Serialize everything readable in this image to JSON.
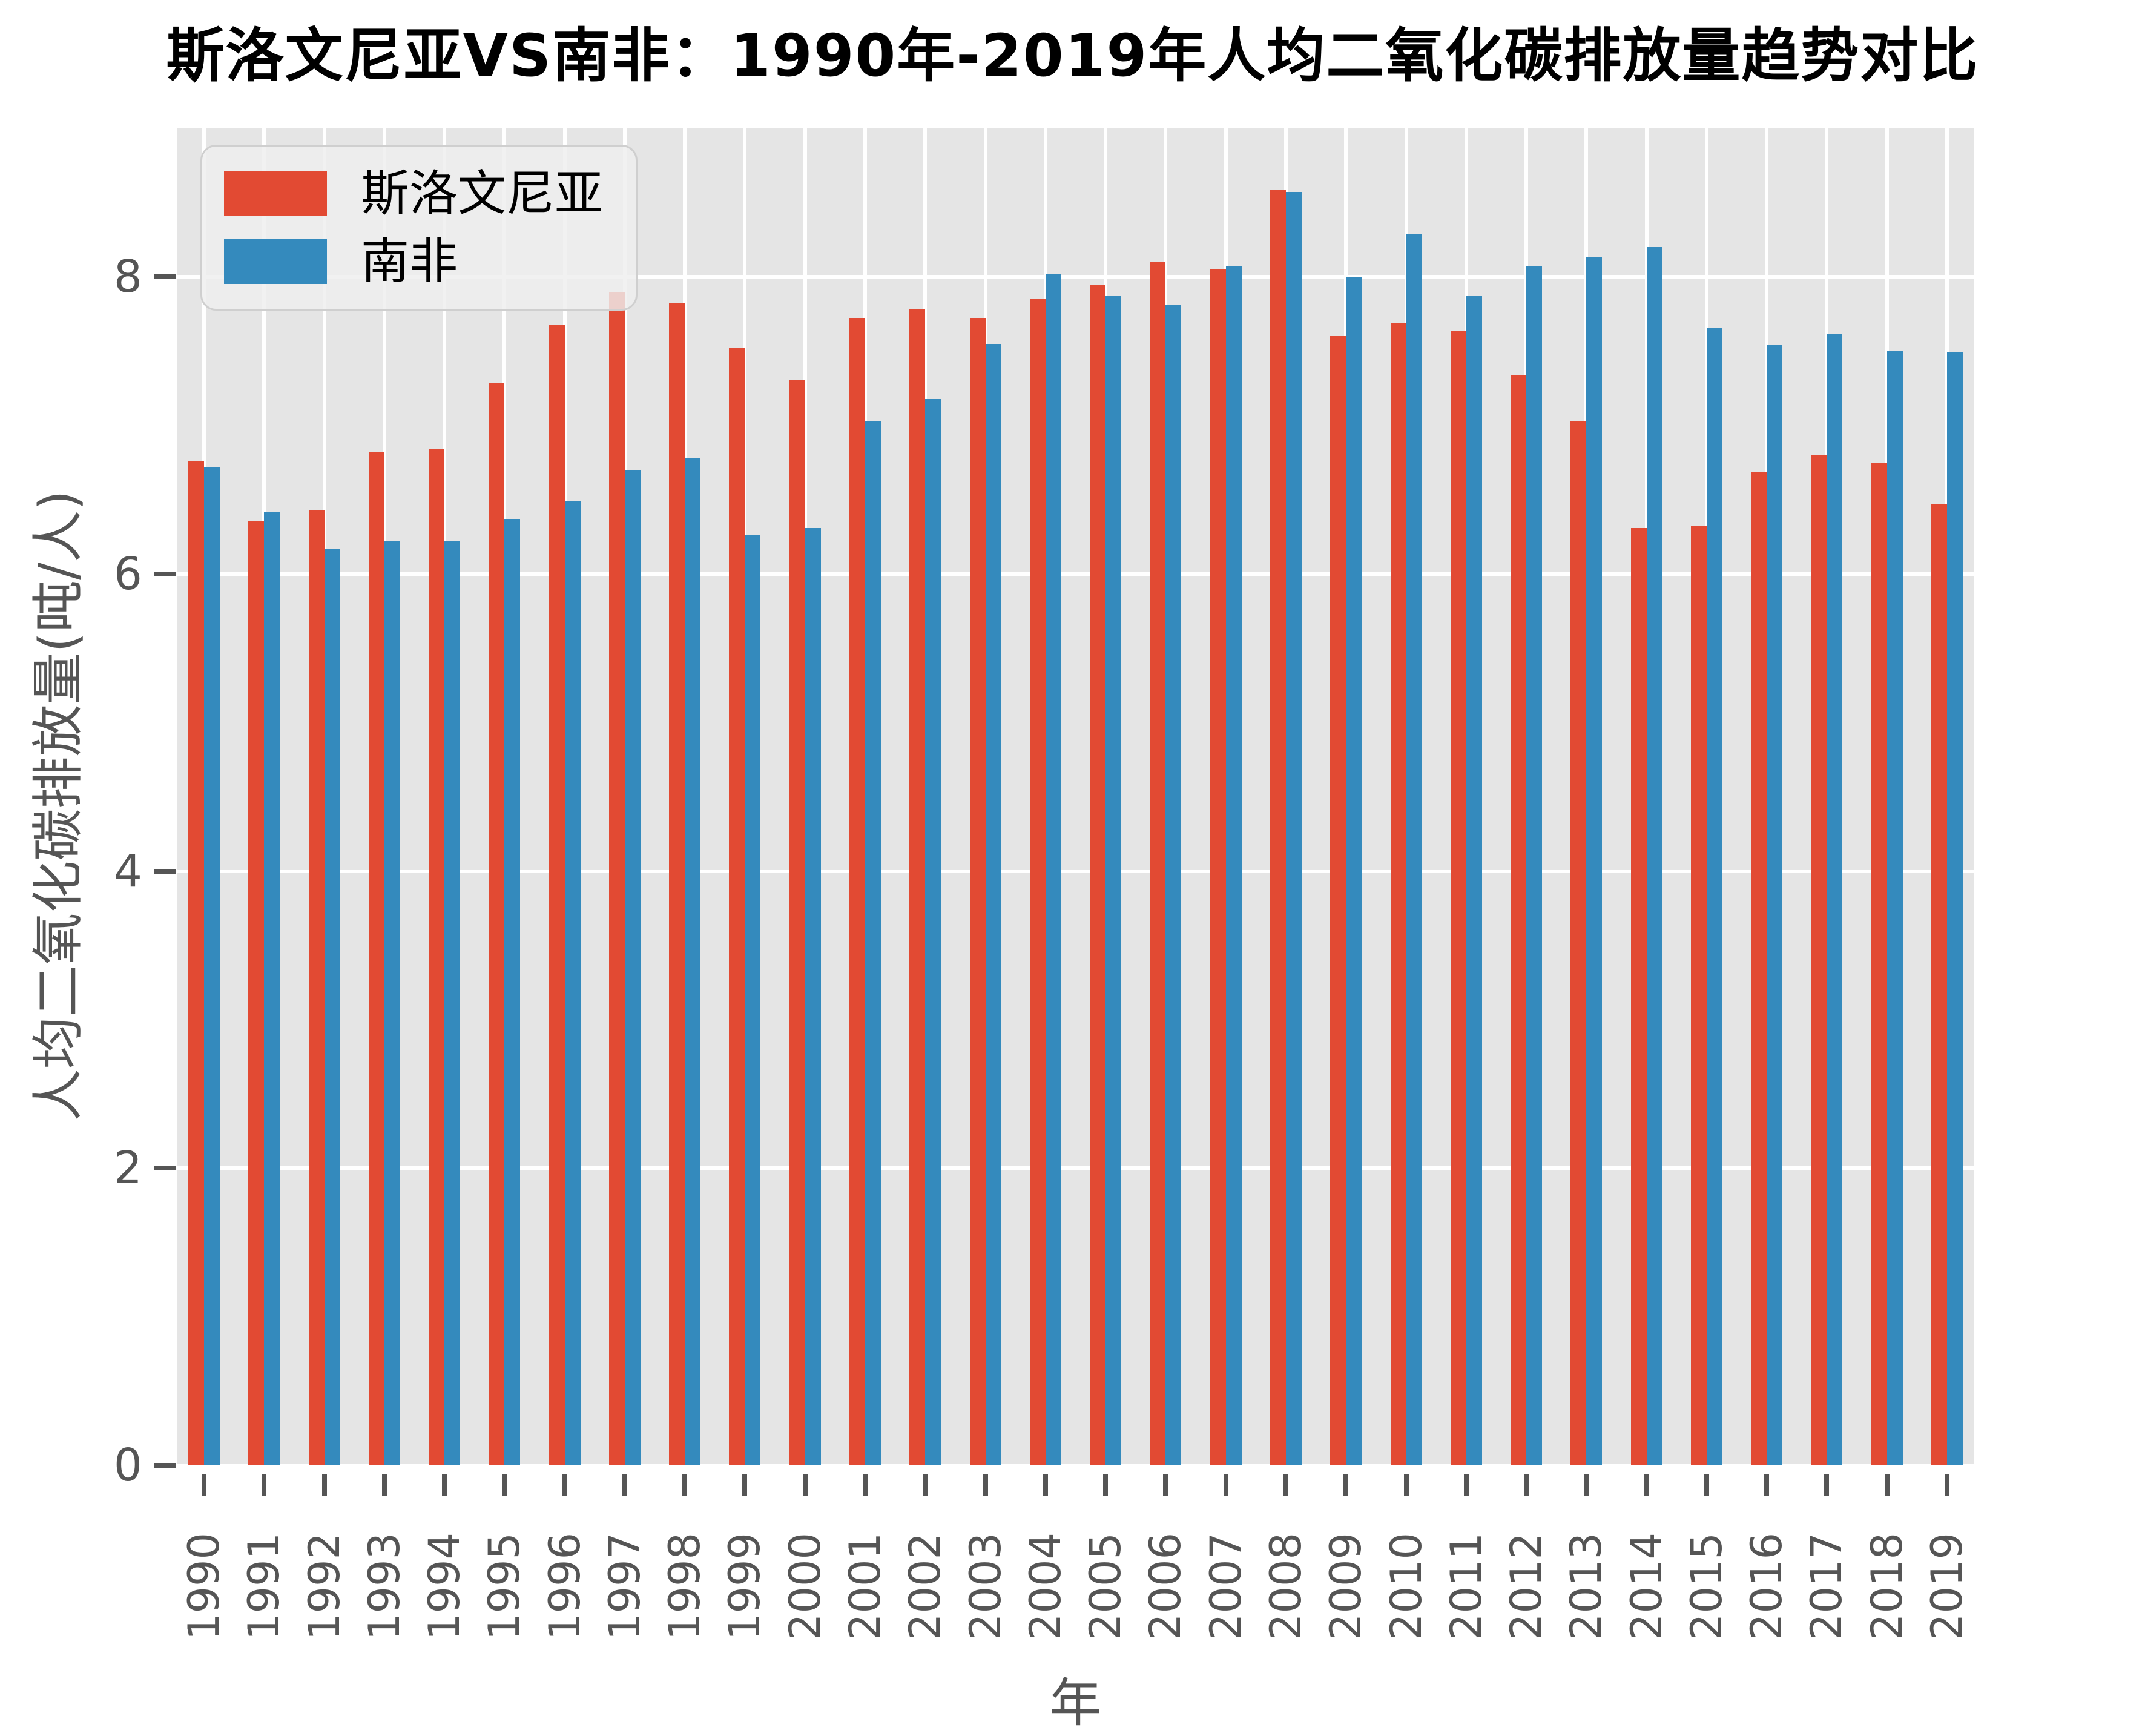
{
  "title": "斯洛文尼亚VS南非：1990年-2019年人均二氧化碳排放量趋势对比",
  "legend": {
    "items": [
      {
        "label": "斯洛文尼亚",
        "color": "#E24A33"
      },
      {
        "label": "南非",
        "color": "#348ABD"
      }
    ]
  },
  "axes": {
    "xlabel": "年",
    "ylabel": "人均二氧化碳排放量(吨/人)"
  },
  "colors": {
    "slovenia_red": "#E24A33",
    "south_africa_blue": "#348ABD",
    "plot_background": "#E5E5E5",
    "gridline": "#FFFFFF",
    "tick_text": "#555555",
    "title_text": "#000000"
  },
  "chart_data": {
    "type": "bar",
    "title": "斯洛文尼亚VS南非：1990年-2019年人均二氧化碳排放量趋势对比",
    "xlabel": "年",
    "ylabel": "人均二氧化碳排放量(吨/人)",
    "ylim": [
      0,
      9
    ],
    "yticks": [
      0,
      2,
      4,
      6,
      8
    ],
    "grid": true,
    "legend_position": "upper-left",
    "categories": [
      "1990",
      "1991",
      "1992",
      "1993",
      "1994",
      "1995",
      "1996",
      "1997",
      "1998",
      "1999",
      "2000",
      "2001",
      "2002",
      "2003",
      "2004",
      "2005",
      "2006",
      "2007",
      "2008",
      "2009",
      "2010",
      "2011",
      "2012",
      "2013",
      "2014",
      "2015",
      "2016",
      "2017",
      "2018",
      "2019"
    ],
    "series": [
      {
        "name": "斯洛文尼亚",
        "color": "#E24A33",
        "values": [
          6.76,
          6.36,
          6.43,
          6.82,
          6.84,
          7.29,
          7.68,
          7.9,
          7.82,
          7.52,
          7.31,
          7.72,
          7.78,
          7.72,
          7.85,
          7.95,
          8.1,
          8.05,
          8.59,
          7.6,
          7.69,
          7.64,
          7.34,
          7.03,
          6.31,
          6.32,
          6.69,
          6.8,
          6.75,
          6.47
        ]
      },
      {
        "name": "南非",
        "color": "#348ABD",
        "values": [
          6.72,
          6.42,
          6.17,
          6.22,
          6.22,
          6.37,
          6.49,
          6.7,
          6.78,
          6.26,
          6.31,
          7.03,
          7.18,
          7.55,
          8.02,
          7.87,
          7.81,
          8.07,
          8.57,
          8.0,
          8.29,
          7.87,
          8.07,
          8.13,
          8.2,
          7.66,
          7.54,
          7.62,
          7.5,
          7.49
        ]
      }
    ]
  }
}
